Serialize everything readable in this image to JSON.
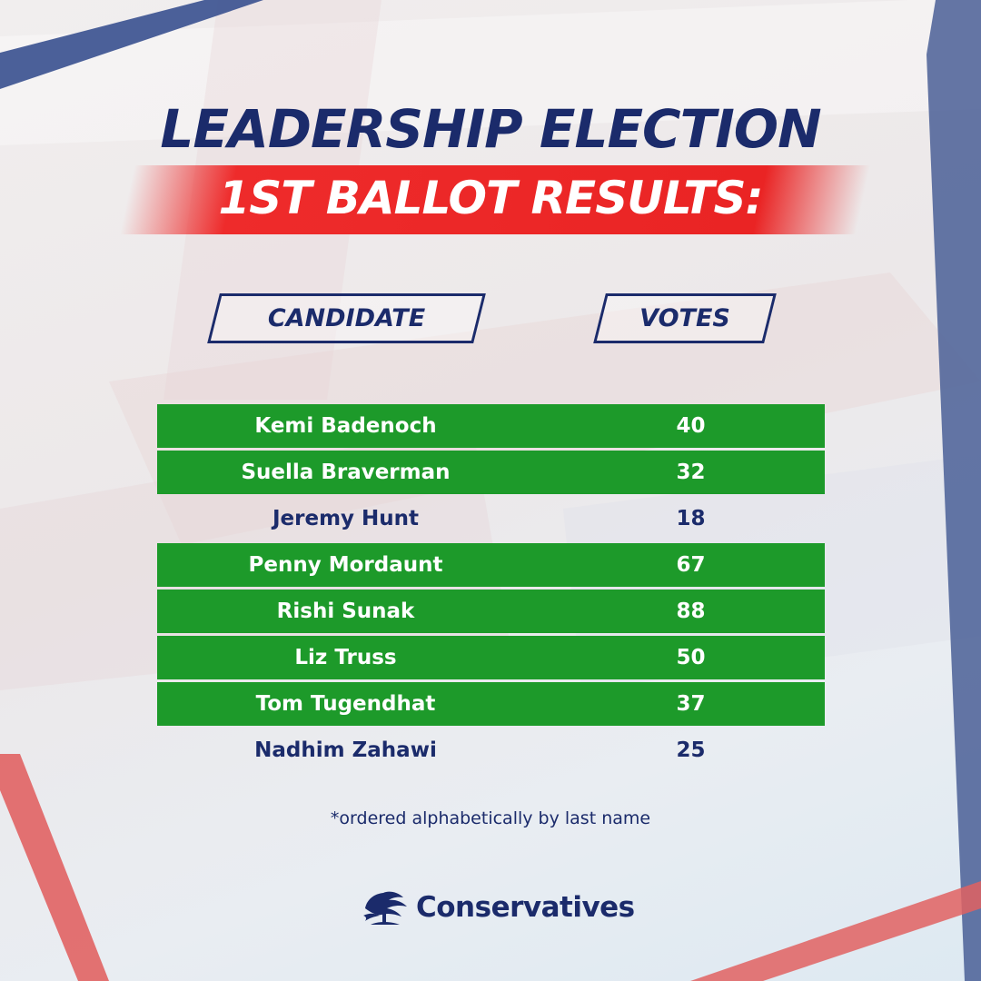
{
  "header": {
    "title": "LEADERSHIP ELECTION",
    "subtitle": "1ST BALLOT RESULTS:"
  },
  "table": {
    "columns": [
      "CANDIDATE",
      "VOTES"
    ],
    "rows": [
      {
        "name": "Kemi Badenoch",
        "votes": "40",
        "highlight": true
      },
      {
        "name": "Suella Braverman",
        "votes": "32",
        "highlight": true
      },
      {
        "name": "Jeremy Hunt",
        "votes": "18",
        "highlight": false
      },
      {
        "name": "Penny Mordaunt",
        "votes": "67",
        "highlight": true
      },
      {
        "name": "Rishi Sunak",
        "votes": "88",
        "highlight": true
      },
      {
        "name": "Liz Truss",
        "votes": "50",
        "highlight": true
      },
      {
        "name": "Tom Tugendhat",
        "votes": "37",
        "highlight": true
      },
      {
        "name": "Nadhim Zahawi",
        "votes": "25",
        "highlight": false
      }
    ]
  },
  "footnote": "*ordered alphabetically by last name",
  "logo": {
    "text": "Conservatives",
    "icon": "tree-icon"
  },
  "colors": {
    "navy": "#1b2b6b",
    "red": "#ea2424",
    "green": "#1d9a2a"
  }
}
